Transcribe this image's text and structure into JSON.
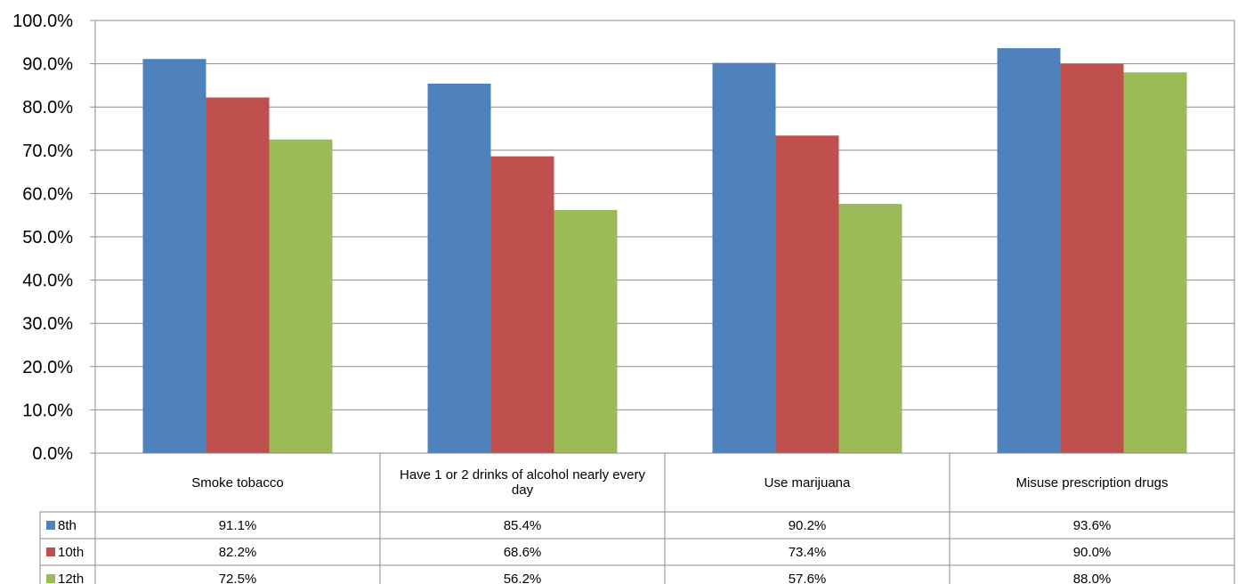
{
  "chart_data": {
    "type": "bar",
    "categories": [
      "Smoke tobacco",
      "Have 1 or 2 drinks of alcohol nearly every day",
      "Use marijuana",
      "Misuse prescription drugs"
    ],
    "series": [
      {
        "name": "8th",
        "color": "#4F81BD",
        "values": [
          91.1,
          85.4,
          90.2,
          93.6
        ],
        "labels": [
          "91.1%",
          "85.4%",
          "90.2%",
          "93.6%"
        ]
      },
      {
        "name": "10th",
        "color": "#C0504D",
        "values": [
          82.2,
          68.6,
          73.4,
          90.0
        ],
        "labels": [
          "82.2%",
          "68.6%",
          "73.4%",
          "90.0%"
        ]
      },
      {
        "name": "12th",
        "color": "#9BBB59",
        "values": [
          72.5,
          56.2,
          57.6,
          88.0
        ],
        "labels": [
          "72.5%",
          "56.2%",
          "57.6%",
          "88.0%"
        ]
      }
    ],
    "yticks": [
      "0.0%",
      "10.0%",
      "20.0%",
      "30.0%",
      "40.0%",
      "50.0%",
      "60.0%",
      "70.0%",
      "80.0%",
      "90.0%",
      "100.0%"
    ],
    "ylim": [
      0,
      100
    ],
    "grid": true,
    "legend": "data-table"
  }
}
